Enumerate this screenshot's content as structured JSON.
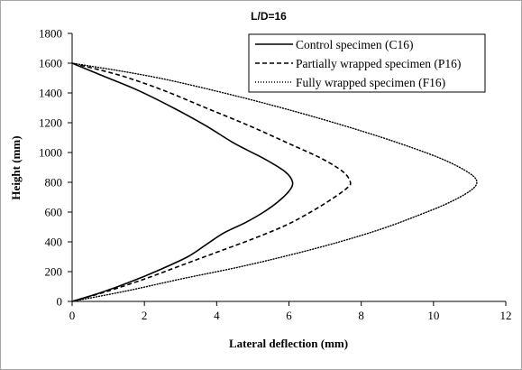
{
  "chart_data": {
    "type": "line",
    "title": "L/D=16",
    "xlabel": "Lateral deflection (mm)",
    "ylabel": "Height (mm)",
    "xlim": [
      0,
      12
    ],
    "ylim": [
      0,
      1800
    ],
    "xticks": [
      "0",
      "2",
      "4",
      "6",
      "8",
      "10",
      "12"
    ],
    "yticks": [
      "0",
      "200",
      "400",
      "600",
      "800",
      "1000",
      "1200",
      "1400",
      "1600",
      "1800"
    ],
    "grid": false,
    "legend_position": "top-right",
    "series": [
      {
        "name": "Control specimen (C16)",
        "style": "solid",
        "color": "#000000",
        "points": [
          [
            0,
            0
          ],
          [
            0.8,
            60
          ],
          [
            1.6,
            130
          ],
          [
            2.4,
            210
          ],
          [
            3.2,
            300
          ],
          [
            3.7,
            380
          ],
          [
            4.2,
            460
          ],
          [
            4.8,
            530
          ],
          [
            5.3,
            600
          ],
          [
            5.7,
            670
          ],
          [
            6.0,
            740
          ],
          [
            6.1,
            800
          ],
          [
            5.9,
            870
          ],
          [
            5.3,
            960
          ],
          [
            4.5,
            1060
          ],
          [
            3.7,
            1180
          ],
          [
            2.8,
            1300
          ],
          [
            1.8,
            1420
          ],
          [
            0.9,
            1510
          ],
          [
            0,
            1600
          ]
        ]
      },
      {
        "name": "Partially wrapped specimen (P16)",
        "style": "dashed",
        "color": "#000000",
        "points": [
          [
            0,
            0
          ],
          [
            1.0,
            70
          ],
          [
            2.0,
            150
          ],
          [
            3.0,
            240
          ],
          [
            4.0,
            330
          ],
          [
            5.0,
            420
          ],
          [
            5.9,
            510
          ],
          [
            6.6,
            600
          ],
          [
            7.2,
            690
          ],
          [
            7.6,
            760
          ],
          [
            7.7,
            800
          ],
          [
            7.5,
            870
          ],
          [
            6.9,
            960
          ],
          [
            6.0,
            1060
          ],
          [
            4.9,
            1180
          ],
          [
            3.7,
            1300
          ],
          [
            2.5,
            1420
          ],
          [
            1.3,
            1520
          ],
          [
            0,
            1600
          ]
        ]
      },
      {
        "name": "Fully wrapped specimen (F16)",
        "style": "dotted",
        "color": "#000000",
        "points": [
          [
            0,
            0
          ],
          [
            1.5,
            70
          ],
          [
            3.0,
            150
          ],
          [
            4.6,
            230
          ],
          [
            6.0,
            310
          ],
          [
            7.4,
            400
          ],
          [
            8.6,
            490
          ],
          [
            9.6,
            580
          ],
          [
            10.4,
            660
          ],
          [
            11.0,
            740
          ],
          [
            11.2,
            800
          ],
          [
            11.0,
            860
          ],
          [
            10.3,
            950
          ],
          [
            9.2,
            1050
          ],
          [
            7.8,
            1160
          ],
          [
            6.1,
            1280
          ],
          [
            4.2,
            1400
          ],
          [
            2.2,
            1510
          ],
          [
            0,
            1600
          ]
        ]
      }
    ]
  }
}
